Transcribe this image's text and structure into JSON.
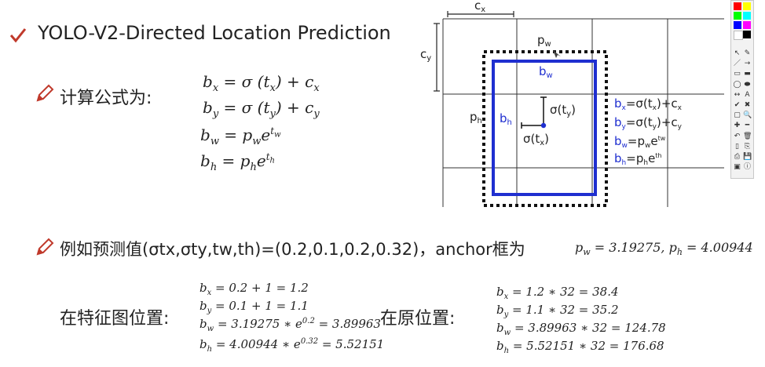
{
  "slide": {
    "title": "YOLO-V2-Directed Location Prediction",
    "formula_heading": "计算公式为:",
    "formulas": [
      "b_x = σ(t_x) + c_x",
      "b_y = σ(t_y) + c_y",
      "b_w = p_w e^{t_w}",
      "b_h = p_h e^{t_h}"
    ],
    "example_text": "例如预测值(σtx,σty,tw,th)=(0.2,0.1,0.2,0.32)，anchor框为",
    "anchor_values": "p_w = 3.19275, p_h = 4.00944",
    "feature_map_label": "在特征图位置:",
    "feature_map_calcs": [
      "b_x = 0.2 + 1 = 1.2",
      "b_y = 0.1 + 1 = 1.1",
      "b_w = 3.19275 * e^{0.2} = 3.89963",
      "b_h = 4.00944 * e^{0.32} = 5.52151"
    ],
    "original_label": "在原位置:",
    "original_calcs": [
      "b_x = 1.2 * 32 = 38.4",
      "b_y = 1.1 * 32 = 35.2",
      "b_w = 3.89963 * 32 = 124.78",
      "b_h = 5.52151 * 32 = 176.68"
    ]
  },
  "diagram": {
    "cx_label": "c",
    "cx_sub": "x",
    "cy_label": "c",
    "cy_sub": "y",
    "pw_label": "p",
    "pw_sub": "w",
    "ph_label": "p",
    "ph_sub": "h",
    "bw_label": "b",
    "bw_sub": "w",
    "bh_label": "b",
    "bh_sub": "h",
    "sigma_ty": "σ(t",
    "sigma_ty_sub": "y",
    "sigma_tx": "σ(t",
    "sigma_tx_sub": "x",
    "side_formulas": [
      {
        "lhs": "b",
        "sub": "x",
        "rhs": "=σ(t",
        "rsub": "x",
        "tail": ")+c",
        "tsub": "x"
      },
      {
        "lhs": "b",
        "sub": "y",
        "rhs": "=σ(t",
        "rsub": "y",
        "tail": ")+c",
        "tsub": "y"
      },
      {
        "lhs": "b",
        "sub": "w",
        "rhs": "=p",
        "rsub": "w",
        "tail": "e",
        "tsub": "tw"
      },
      {
        "lhs": "b",
        "sub": "h",
        "rhs": "=p",
        "rsub": "h",
        "tail": "e",
        "tsub": "th"
      }
    ],
    "colors": {
      "grid": "#333333",
      "box": "#1f2fd0",
      "anchor": "#111111"
    }
  },
  "toolbar": {
    "colors": [
      "#ff0000",
      "#ffff00",
      "#00ff00",
      "#00ffff",
      "#0000ff",
      "#ff00ff",
      "#ffffff",
      "#000000"
    ],
    "icons": [
      "select-icon",
      "pen-icon",
      "line-icon",
      "arrow-icon",
      "rect-icon",
      "filled-rect-icon",
      "ellipse-icon",
      "filled-ellipse-icon",
      "move-icon",
      "text-icon",
      "check-icon",
      "cross-icon",
      "rect-outline-icon",
      "zoom-icon",
      "plus-icon",
      "minus-icon",
      "undo-icon",
      "delete-icon",
      "new-icon",
      "copy-icon",
      "print-icon",
      "save-icon",
      "screen-icon",
      "info-icon"
    ],
    "icon_glyphs": [
      "↖",
      "✎",
      "／",
      "→",
      "▭",
      "▬",
      "◯",
      "⬬",
      "↔",
      "A",
      "✔",
      "✖",
      "▢",
      "🔍",
      "✚",
      "━",
      "↶",
      "🗑",
      "▯",
      "⎘",
      "⎙",
      "💾",
      "▣",
      "ⓘ"
    ]
  }
}
